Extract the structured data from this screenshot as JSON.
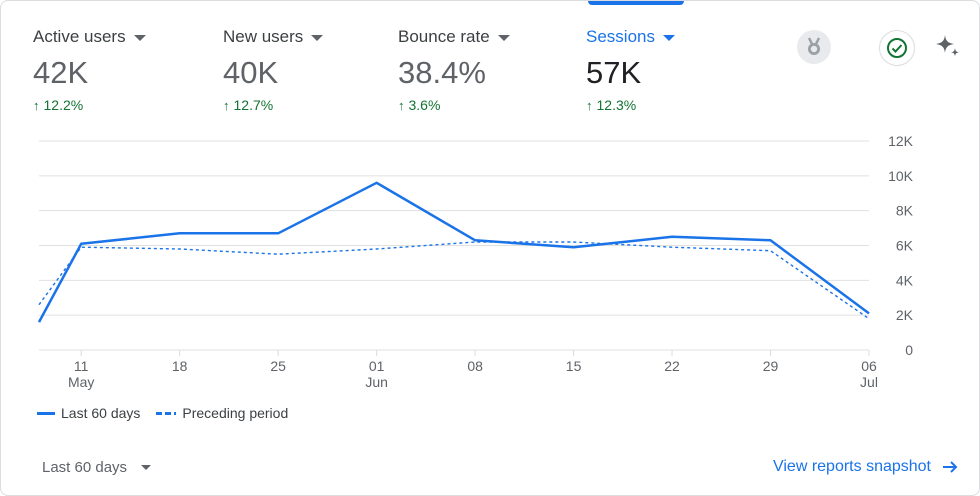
{
  "metrics": [
    {
      "title": "Active users",
      "value": "42K",
      "change": "12.2%"
    },
    {
      "title": "New users",
      "value": "40K",
      "change": "12.7%"
    },
    {
      "title": "Bounce rate",
      "value": "38.4%",
      "change": "3.6%"
    },
    {
      "title": "Sessions",
      "value": "57K",
      "change": "12.3%"
    }
  ],
  "icons": [
    "medal-icon",
    "check-circle-icon",
    "sparkle-icon"
  ],
  "legend": {
    "current": "Last 60 days",
    "previous": "Preceding period"
  },
  "date_range": "Last 60 days",
  "footer_link": "View reports snapshot",
  "colors": {
    "accent": "#1a73e8",
    "positive": "#137333"
  },
  "chart_data": {
    "type": "line",
    "x": [
      "2024-05-08",
      "2024-05-11",
      "2024-05-18",
      "2024-05-25",
      "2024-06-01",
      "2024-06-08",
      "2024-06-15",
      "2024-06-22",
      "2024-06-29",
      "2024-07-06"
    ],
    "x_ticks": [
      {
        "label": "11",
        "sub": "May"
      },
      {
        "label": "18",
        "sub": ""
      },
      {
        "label": "25",
        "sub": ""
      },
      {
        "label": "01",
        "sub": "Jun"
      },
      {
        "label": "08",
        "sub": ""
      },
      {
        "label": "15",
        "sub": ""
      },
      {
        "label": "22",
        "sub": ""
      },
      {
        "label": "29",
        "sub": ""
      },
      {
        "label": "06",
        "sub": "Jul"
      }
    ],
    "y_ticks": [
      "0",
      "2K",
      "4K",
      "6K",
      "8K",
      "10K",
      "12K"
    ],
    "ylim": [
      0,
      12000
    ],
    "series": [
      {
        "name": "Last 60 days",
        "style": "solid",
        "values": [
          1600,
          6100,
          6700,
          6700,
          9600,
          6300,
          5900,
          6500,
          6300,
          2100
        ]
      },
      {
        "name": "Preceding period",
        "style": "dashed",
        "values": [
          2600,
          5900,
          5800,
          5500,
          5800,
          6200,
          6200,
          5900,
          5700,
          1800
        ]
      }
    ],
    "grid": true
  }
}
